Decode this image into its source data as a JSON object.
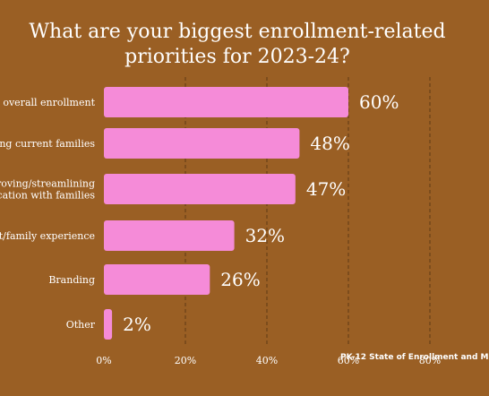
{
  "chart_data": {
    "type": "bar",
    "orientation": "horizontal",
    "title": "What are your biggest enrollment-related priorities for 2023-24?",
    "title_lines": [
      "What are your biggest enrollment-related",
      "priorities for 2023-24?"
    ],
    "categories": [
      [
        "g overall enrollment"
      ],
      [
        "ing current families"
      ],
      [
        "roving/streamlining",
        "cation with families"
      ],
      [
        "t/family experience"
      ],
      [
        "Branding"
      ],
      [
        "Other"
      ]
    ],
    "values": [
      60,
      48,
      47,
      32,
      26,
      2
    ],
    "value_labels": [
      "60%",
      "48%",
      "47%",
      "32%",
      "26%",
      "2%"
    ],
    "x_ticks": [
      "0%",
      "20%",
      "40%",
      "60%",
      "80%"
    ],
    "xlim": [
      0,
      100
    ],
    "grid": "vertical-dashed",
    "colors": {
      "background": "#9a5f24",
      "bar": "#f58bd8",
      "text": "#ffffff",
      "grid": "#5e3a14"
    }
  },
  "source": "PK-12 State of Enrollment and M"
}
